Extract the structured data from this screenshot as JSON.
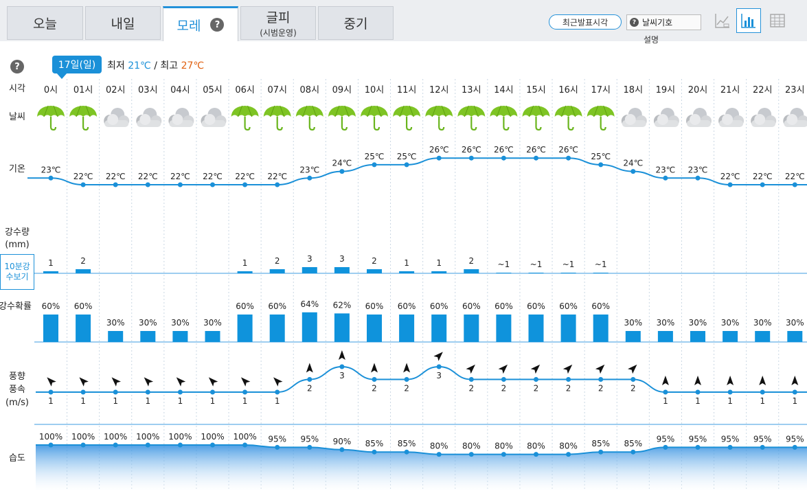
{
  "tabs": [
    {
      "label": "오늘",
      "sub": ""
    },
    {
      "label": "내일",
      "sub": ""
    },
    {
      "label": "모레",
      "sub": ""
    },
    {
      "label": "글피",
      "sub": "(시범운영)"
    },
    {
      "label": "중기",
      "sub": ""
    }
  ],
  "help_glyph": "?",
  "recent_button": "최근발표시각",
  "legend_select": "날씨기호",
  "legend_caption": "설명",
  "day_label": "17일(일)",
  "min_label": "최저",
  "min_value": "21℃",
  "sep": "/",
  "max_label": "최고",
  "max_value": "27℃",
  "row_labels": {
    "time": "시각",
    "weather": "날씨",
    "temp": "기온",
    "precip": "강수량",
    "precip_unit": "(mm)",
    "precip_btn": "10분강수보기",
    "pop": "강수확률",
    "wind1": "풍향",
    "wind2": "풍속",
    "wind_unit": "(m/s)",
    "humidity": "습도"
  },
  "colors": {
    "accent": "#1a90d8",
    "hi": "#e06010",
    "bar": "#0f93dc"
  },
  "chart_data": {
    "type": "line",
    "hours": [
      "0시",
      "01시",
      "02시",
      "03시",
      "04시",
      "05시",
      "06시",
      "07시",
      "08시",
      "09시",
      "10시",
      "11시",
      "12시",
      "13시",
      "14시",
      "15시",
      "16시",
      "17시",
      "18시",
      "19시",
      "20시",
      "21시",
      "22시",
      "23시"
    ],
    "weather": [
      "umbrella",
      "umbrella",
      "cloud",
      "cloud",
      "cloud",
      "cloud",
      "umbrella",
      "umbrella",
      "umbrella",
      "umbrella",
      "umbrella",
      "umbrella",
      "umbrella",
      "umbrella",
      "umbrella",
      "umbrella",
      "umbrella",
      "umbrella",
      "cloud",
      "cloud",
      "cloud",
      "cloud",
      "cloud",
      "cloud"
    ],
    "temperature": [
      23,
      22,
      22,
      22,
      22,
      22,
      22,
      22,
      23,
      24,
      25,
      25,
      26,
      26,
      26,
      26,
      26,
      25,
      24,
      23,
      23,
      22,
      22,
      22
    ],
    "temperature_labels": [
      "23℃",
      "22℃",
      "22℃",
      "22℃",
      "22℃",
      "22℃",
      "22℃",
      "22℃",
      "23℃",
      "24℃",
      "25℃",
      "25℃",
      "26℃",
      "26℃",
      "26℃",
      "26℃",
      "26℃",
      "25℃",
      "24℃",
      "23℃",
      "23℃",
      "22℃",
      "22℃",
      "22℃"
    ],
    "precip": [
      1,
      2,
      null,
      null,
      null,
      null,
      1,
      2,
      3,
      3,
      2,
      1,
      1,
      2,
      0.3,
      0.3,
      0.3,
      0.3,
      null,
      null,
      null,
      null,
      null,
      null
    ],
    "precip_labels": [
      "1",
      "2",
      "",
      "",
      "",
      "",
      "1",
      "2",
      "3",
      "3",
      "2",
      "1",
      "1",
      "2",
      "~1",
      "~1",
      "~1",
      "~1",
      "",
      "",
      "",
      "",
      "",
      ""
    ],
    "pop": [
      60,
      60,
      30,
      30,
      30,
      30,
      60,
      60,
      64,
      62,
      60,
      60,
      60,
      60,
      60,
      60,
      60,
      60,
      30,
      30,
      30,
      30,
      30,
      30
    ],
    "pop_labels": [
      "60%",
      "60%",
      "30%",
      "30%",
      "30%",
      "30%",
      "60%",
      "60%",
      "64%",
      "62%",
      "60%",
      "60%",
      "60%",
      "60%",
      "60%",
      "60%",
      "60%",
      "60%",
      "30%",
      "30%",
      "30%",
      "30%",
      "30%",
      "30%"
    ],
    "wind_speed": [
      1,
      1,
      1,
      1,
      1,
      1,
      1,
      1,
      2,
      3,
      2,
      2,
      3,
      2,
      2,
      2,
      2,
      2,
      2,
      1,
      1,
      1,
      1,
      1
    ],
    "wind_labels": [
      "1",
      "1",
      "1",
      "1",
      "1",
      "1",
      "1",
      "1",
      "2",
      "3",
      "2",
      "2",
      "3",
      "2",
      "2",
      "2",
      "2",
      "2",
      "2",
      "1",
      "1",
      "1",
      "1",
      "1"
    ],
    "wind_dir": [
      "NW",
      "NW",
      "NW",
      "NW",
      "NW",
      "NW",
      "NW",
      "NW",
      "N",
      "N",
      "N",
      "N",
      "NE",
      "NE",
      "NE",
      "NE",
      "NE",
      "NE",
      "NE",
      "N",
      "N",
      "N",
      "N",
      "N"
    ],
    "humidity": [
      100,
      100,
      100,
      100,
      100,
      100,
      100,
      95,
      95,
      90,
      85,
      85,
      80,
      80,
      80,
      80,
      80,
      85,
      85,
      95,
      95,
      95,
      95,
      95
    ],
    "humidity_labels": [
      "100%",
      "100%",
      "100%",
      "100%",
      "100%",
      "100%",
      "100%",
      "95%",
      "95%",
      "90%",
      "85%",
      "85%",
      "80%",
      "80%",
      "80%",
      "80%",
      "80%",
      "85%",
      "85%",
      "95%",
      "95%",
      "95%",
      "95%",
      "95%"
    ]
  }
}
